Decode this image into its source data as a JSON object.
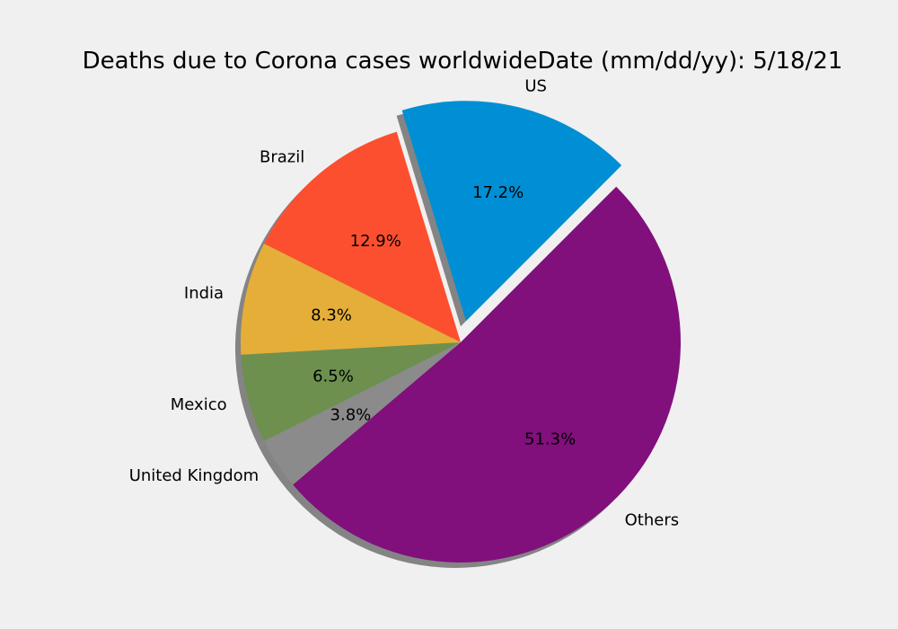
{
  "chart_data": {
    "type": "pie",
    "title": "Deaths due to Corona cases worldwideDate (mm/dd/yy): 5/18/21",
    "start_angle": 45,
    "direction": "counterclockwise",
    "shadow": true,
    "slices": [
      {
        "label": "US",
        "value": 17.2,
        "pct_label": "17.2%",
        "color": "#008fd5",
        "explode": 0.1
      },
      {
        "label": "Brazil",
        "value": 12.9,
        "pct_label": "12.9%",
        "color": "#fc4f30",
        "explode": 0
      },
      {
        "label": "India",
        "value": 8.3,
        "pct_label": "8.3%",
        "color": "#e5ae38",
        "explode": 0
      },
      {
        "label": "Mexico",
        "value": 6.5,
        "pct_label": "6.5%",
        "color": "#6d904f",
        "explode": 0
      },
      {
        "label": "United Kingdom",
        "value": 3.8,
        "pct_label": "3.8%",
        "color": "#8b8b8b",
        "explode": 0
      },
      {
        "label": "Others",
        "value": 51.3,
        "pct_label": "51.3%",
        "color": "#810f7c",
        "explode": 0
      }
    ]
  }
}
